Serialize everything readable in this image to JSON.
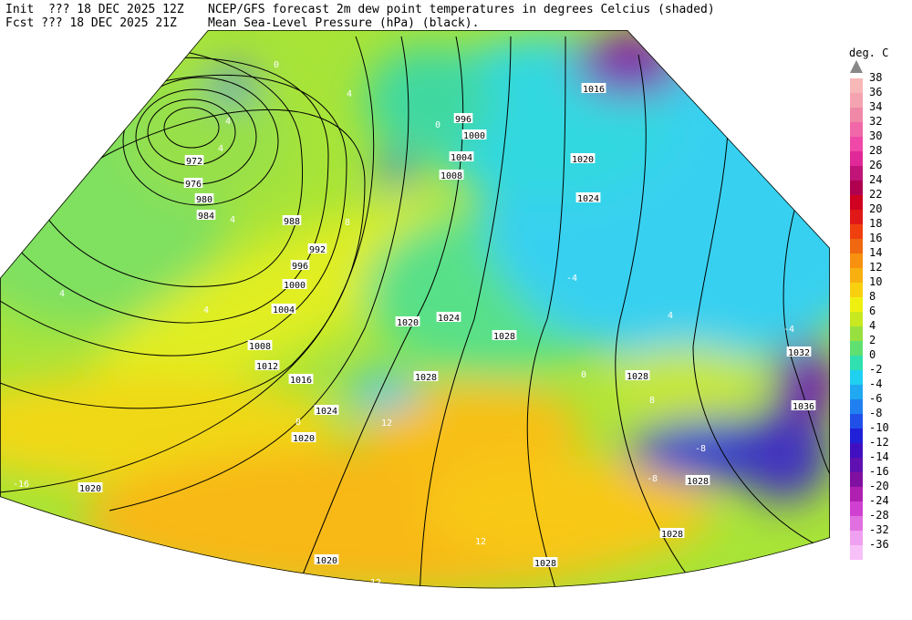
{
  "header": {
    "init_line": "Init  ??? 18 DEC 2025 12Z",
    "fcst_line": "Fcst ??? 18 DEC 2025 21Z",
    "title_line1": "NCEP/GFS forecast 2m dew point temperatures in degrees Celcius (shaded)",
    "title_line2": "Mean Sea-Level Pressure (hPa) (black)."
  },
  "legend": {
    "unit": "deg. C",
    "levels": [
      {
        "label": "38",
        "color": "#f8b8b8"
      },
      {
        "label": "36",
        "color": "#f4a4b0"
      },
      {
        "label": "34",
        "color": "#f088a8"
      },
      {
        "label": "32",
        "color": "#f068a8"
      },
      {
        "label": "30",
        "color": "#f048a8"
      },
      {
        "label": "28",
        "color": "#e02898"
      },
      {
        "label": "26",
        "color": "#c01478"
      },
      {
        "label": "24",
        "color": "#b00050"
      },
      {
        "label": "22",
        "color": "#d00020"
      },
      {
        "label": "20",
        "color": "#e01818"
      },
      {
        "label": "18",
        "color": "#f04010"
      },
      {
        "label": "16",
        "color": "#f06810"
      },
      {
        "label": "14",
        "color": "#f89010"
      },
      {
        "label": "12",
        "color": "#f8b010"
      },
      {
        "label": "10",
        "color": "#f8d010"
      },
      {
        "label": "8",
        "color": "#f0f010"
      },
      {
        "label": "6",
        "color": "#c8e820"
      },
      {
        "label": "4",
        "color": "#98e040"
      },
      {
        "label": "2",
        "color": "#60e070"
      },
      {
        "label": "0",
        "color": "#30e0b0"
      },
      {
        "label": "-2",
        "color": "#20d0f0"
      },
      {
        "label": "-4",
        "color": "#20a8f0"
      },
      {
        "label": "-6",
        "color": "#2080f0"
      },
      {
        "label": "-8",
        "color": "#2050e8"
      },
      {
        "label": "-10",
        "color": "#2020d8"
      },
      {
        "label": "-12",
        "color": "#4010c0"
      },
      {
        "label": "-14",
        "color": "#6010b0"
      },
      {
        "label": "-16",
        "color": "#8010a0"
      },
      {
        "label": "-20",
        "color": "#b020b0"
      },
      {
        "label": "-24",
        "color": "#d040d0"
      },
      {
        "label": "-28",
        "color": "#e070e0"
      },
      {
        "label": "-32",
        "color": "#f0a0f0"
      },
      {
        "label": "-36",
        "color": "#f8c0f8"
      }
    ]
  },
  "map": {
    "isobar_labels": [
      "972",
      "976",
      "980",
      "984",
      "988",
      "992",
      "996",
      "1000",
      "1004",
      "1008",
      "1012",
      "1016",
      "1020",
      "1024",
      "1020",
      "1020",
      "1020",
      "1028",
      "1028",
      "1028",
      "1036",
      "1032",
      "1028",
      "1028",
      "1028",
      "1024",
      "1024",
      "1020",
      "1016",
      "996",
      "1000",
      "1004",
      "1008"
    ],
    "dewpoint_labels": [
      "0",
      "4",
      "4",
      "4",
      "4",
      "4",
      "4",
      "8",
      "-4",
      "0",
      "8",
      "-8",
      "-8",
      "12",
      "12",
      "8",
      "-16",
      "4",
      "12",
      "-4",
      "0",
      "4"
    ]
  }
}
